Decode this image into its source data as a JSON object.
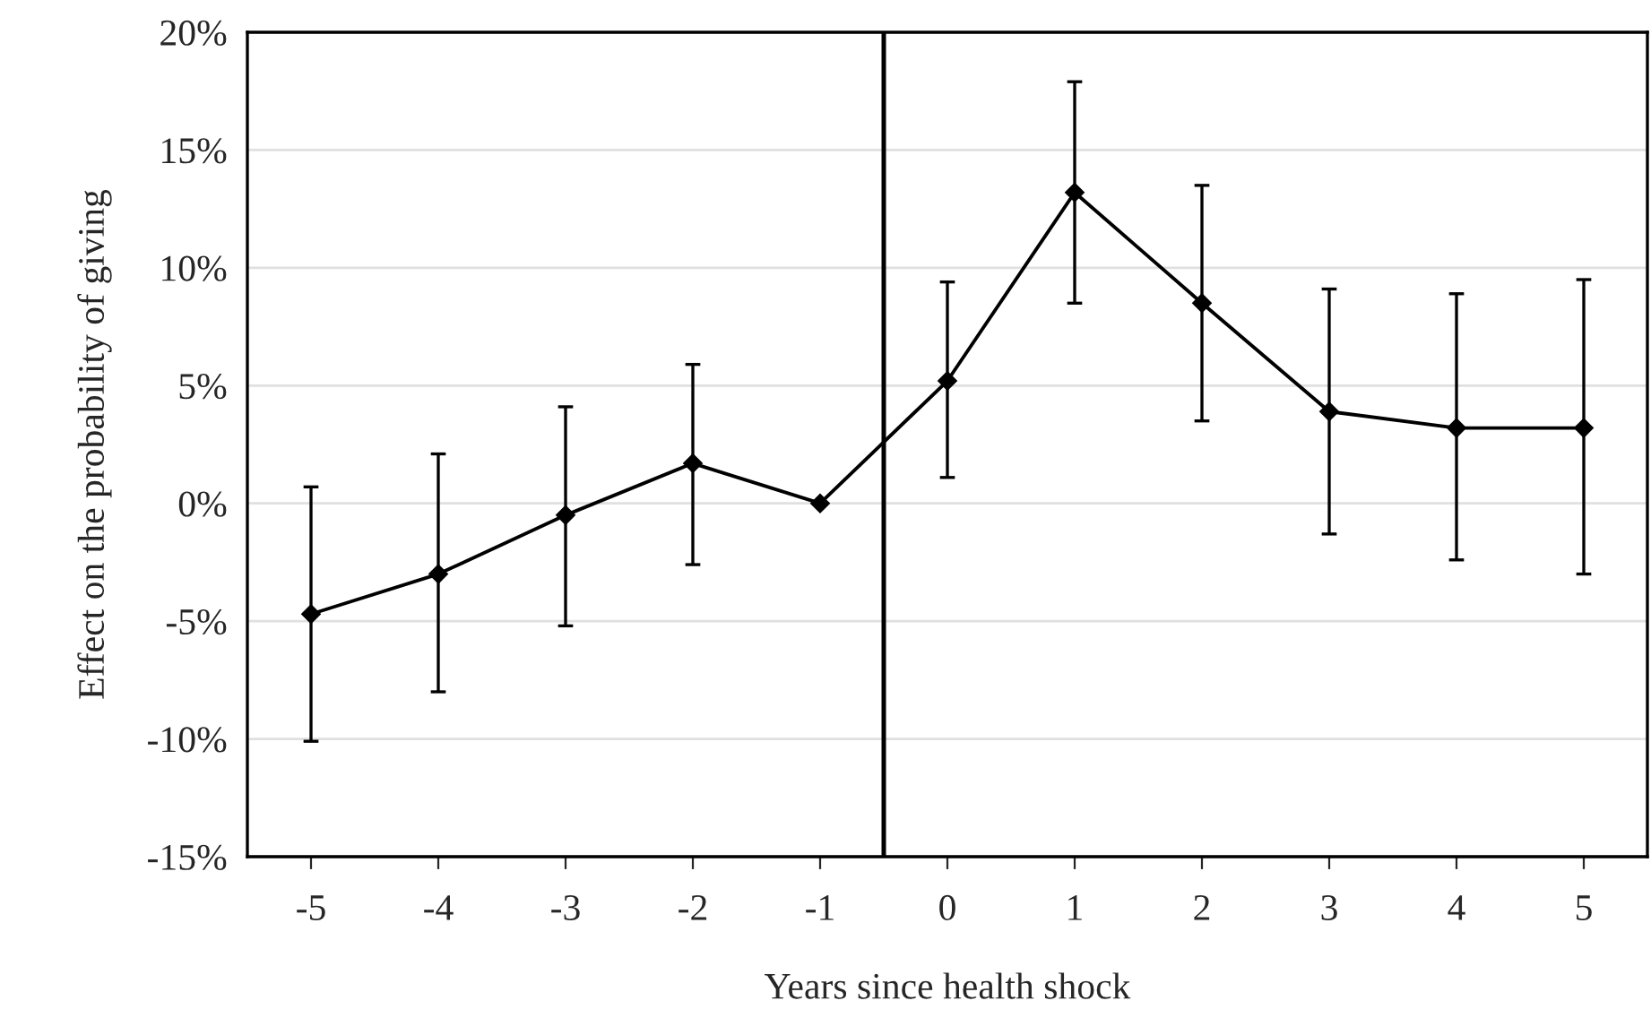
{
  "chart_data": {
    "type": "line",
    "xlabel": "Years since health shock",
    "ylabel": "Effect on the probability of giving",
    "x": [
      -5,
      -4,
      -3,
      -2,
      -1,
      0,
      1,
      2,
      3,
      4,
      5
    ],
    "series": [
      {
        "color": "#000000",
        "values": [
          -4.7,
          -3.0,
          -0.5,
          1.7,
          0,
          5.2,
          13.2,
          8.5,
          3.9,
          3.2,
          3.2
        ],
        "errors": [
          [
            -10.1,
            0.7
          ],
          [
            -8.0,
            2.1
          ],
          [
            -5.2,
            4.1
          ],
          [
            -2.6,
            5.9
          ],
          null,
          [
            1.1,
            9.4
          ],
          [
            8.5,
            17.9
          ],
          [
            3.5,
            13.5
          ],
          [
            -1.3,
            9.1
          ],
          [
            -2.4,
            8.9
          ],
          [
            -3.0,
            9.5
          ]
        ]
      }
    ],
    "xlim": [
      -5.5,
      5.5
    ],
    "xticks": [
      -5,
      -4,
      -3,
      -2,
      -1,
      0,
      1,
      2,
      3,
      4,
      5
    ],
    "ylim": [
      -15,
      20
    ],
    "yticks": [
      {
        "value": -15,
        "label": "-15%"
      },
      {
        "value": -10,
        "label": "-10%"
      },
      {
        "value": -5,
        "label": "-5%"
      },
      {
        "value": 0,
        "label": "0%"
      },
      {
        "value": 5,
        "label": "5%"
      },
      {
        "value": 10,
        "label": "10%"
      },
      {
        "value": 15,
        "label": "15%"
      },
      {
        "value": 20,
        "label": "20%"
      }
    ],
    "ref_lines": [
      {
        "axis": "x",
        "value": -0.5,
        "color": "#000000"
      }
    ],
    "grid": "y",
    "marker": "diamond",
    "line_style": "solid",
    "legend": false
  }
}
